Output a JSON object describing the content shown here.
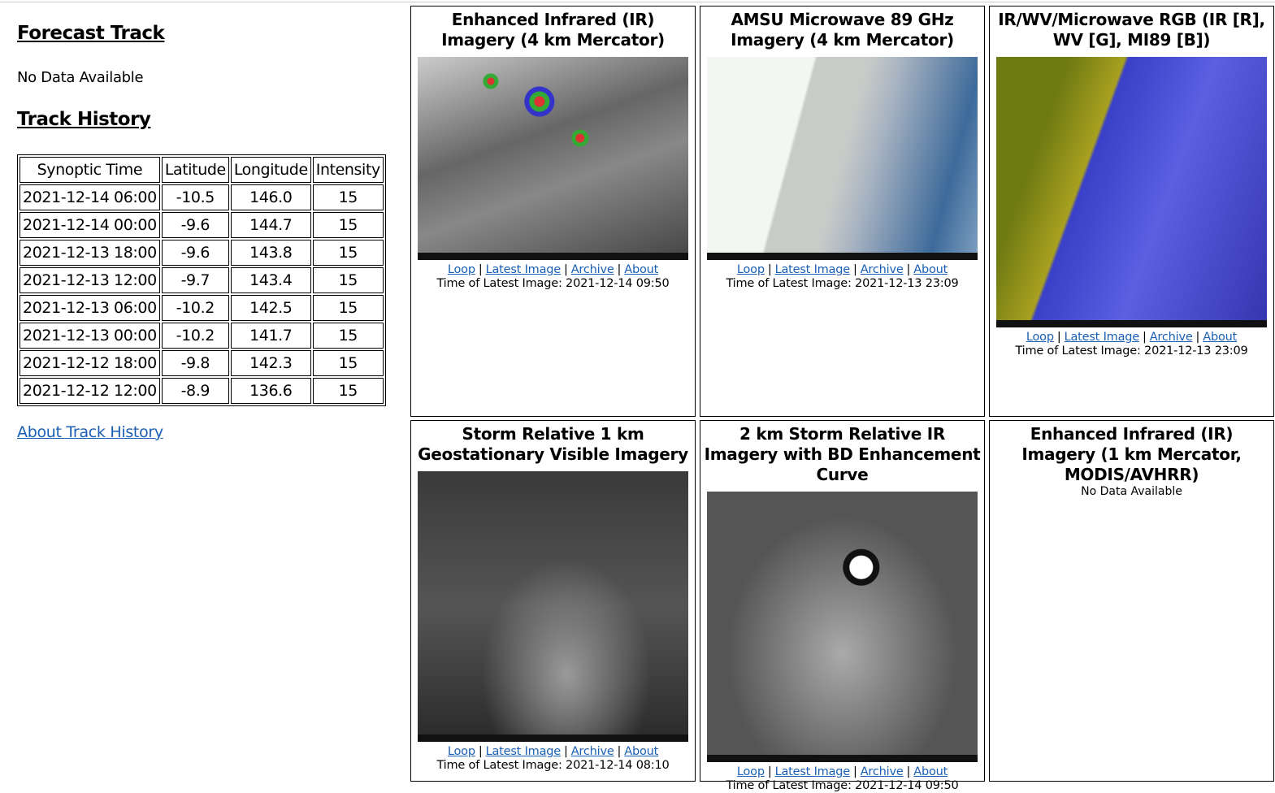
{
  "left": {
    "forecast_title": "Forecast Track",
    "forecast_text": "No Data Available",
    "history_title": "Track History",
    "columns": [
      "Synoptic Time",
      "Latitude",
      "Longitude",
      "Intensity"
    ],
    "rows": [
      [
        "2021-12-14 06:00",
        "-10.5",
        "146.0",
        "15"
      ],
      [
        "2021-12-14 00:00",
        "-9.6",
        "144.7",
        "15"
      ],
      [
        "2021-12-13 18:00",
        "-9.6",
        "143.8",
        "15"
      ],
      [
        "2021-12-13 12:00",
        "-9.7",
        "143.4",
        "15"
      ],
      [
        "2021-12-13 06:00",
        "-10.2",
        "142.5",
        "15"
      ],
      [
        "2021-12-13 00:00",
        "-10.2",
        "141.7",
        "15"
      ],
      [
        "2021-12-12 18:00",
        "-9.8",
        "142.3",
        "15"
      ],
      [
        "2021-12-12 12:00",
        "-8.9",
        "136.6",
        "15"
      ]
    ],
    "about_link": "About Track History"
  },
  "links": {
    "loop": "Loop",
    "latest": "Latest Image",
    "archive": "Archive",
    "about": "About",
    "sep": "|"
  },
  "panels": [
    {
      "title": "Enhanced Infrared (IR) Imagery (4 km Mercator)",
      "time": "Time of Latest Image: 2021-12-14 09:50"
    },
    {
      "title": "AMSU Microwave 89 GHz Imagery (4 km Mercator)",
      "time": "Time of Latest Image: 2021-12-13 23:09"
    },
    {
      "title": "IR/WV/Microwave RGB (IR [R], WV [G], MI89 [B])",
      "time": "Time of Latest Image: 2021-12-13 23:09"
    },
    {
      "title": "Storm Relative 1 km Geostationary Visible Imagery",
      "time": "Time of Latest Image: 2021-12-14 08:10"
    },
    {
      "title": "2 km Storm Relative IR Imagery with BD Enhancement Curve",
      "time": "Time of Latest Image: 2021-12-14 09:50"
    },
    {
      "title": "Enhanced Infrared (IR) Imagery (1 km Mercator, MODIS/AVHRR)",
      "nodata": "No Data Available"
    }
  ]
}
